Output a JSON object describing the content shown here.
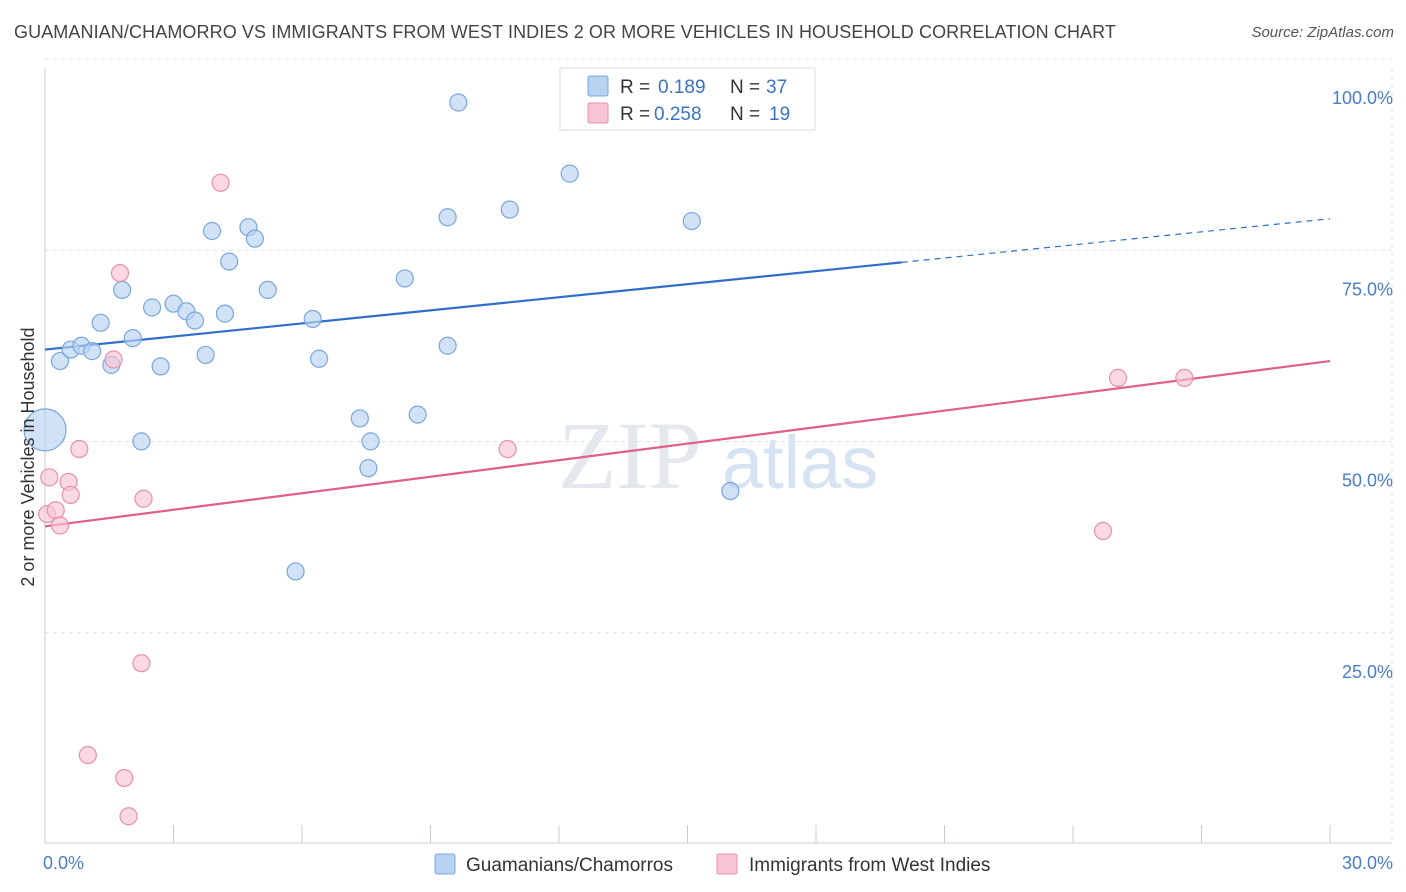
{
  "title": "GUAMANIAN/CHAMORRO VS IMMIGRANTS FROM WEST INDIES 2 OR MORE VEHICLES IN HOUSEHOLD CORRELATION CHART",
  "source": "Source: ZipAtlas.com",
  "watermark": {
    "zip": "ZIP",
    "atlas": "atlas"
  },
  "colors": {
    "blue_fill": "#b8d3f2",
    "blue_stroke": "#7aa6dc",
    "blue_line": "#2f6fcb",
    "pink_fill": "#f7c4d3",
    "pink_stroke": "#e890ab",
    "pink_line": "#e0608a",
    "grid": "#dde3ea",
    "axis_label": "#4a7cc7"
  },
  "legend": {
    "rows": [
      {
        "r_label": "R =",
        "r_value": "0.189",
        "n_label": "N =",
        "n_value": "37",
        "swatch": "blue"
      },
      {
        "r_label": "R =",
        "r_value": "0.258",
        "n_label": "N =",
        "n_value": "19",
        "swatch": "pink"
      }
    ]
  },
  "bottom_legend": [
    {
      "label": "Guamanians/Chamorros",
      "swatch": "blue"
    },
    {
      "label": "Immigrants from West Indies",
      "swatch": "pink"
    }
  ],
  "chart_data": {
    "type": "scatter",
    "title": "GUAMANIAN/CHAMORRO VS IMMIGRANTS FROM WEST INDIES 2 OR MORE VEHICLES IN HOUSEHOLD CORRELATION CHART",
    "xlabel": "",
    "ylabel": "2 or more Vehicles in Household",
    "xlim": [
      0,
      30
    ],
    "ylim": [
      0,
      100
    ],
    "x_tick_labels": [
      {
        "value": 0,
        "label": "0.0%"
      },
      {
        "value": 30,
        "label": "30.0%"
      }
    ],
    "y_tick_labels": [
      {
        "value": 100,
        "label": "100.0%"
      },
      {
        "value": 75,
        "label": "75.0%"
      },
      {
        "value": 50,
        "label": "50.0%"
      },
      {
        "value": 25,
        "label": "25.0%"
      }
    ],
    "grid": true,
    "legend_position": "top-center",
    "series": [
      {
        "name": "Guamanians/Chamorros",
        "color": "blue",
        "x": [
          0.0,
          0.35,
          0.6,
          0.85,
          1.1,
          1.3,
          1.55,
          1.8,
          2.05,
          2.25,
          2.5,
          2.7,
          3.0,
          3.3,
          3.5,
          3.75,
          3.9,
          4.2,
          4.3,
          4.75,
          4.9,
          5.2,
          5.85,
          6.25,
          6.4,
          7.35,
          7.55,
          7.6,
          8.4,
          8.7,
          9.4,
          9.4,
          9.65,
          10.85,
          12.25,
          15.1,
          16.0
        ],
        "y": [
          54.0,
          63.0,
          64.5,
          65.0,
          64.3,
          68.0,
          62.5,
          72.3,
          66.0,
          52.5,
          70.0,
          62.3,
          70.5,
          69.5,
          68.3,
          63.8,
          80.0,
          69.2,
          76.0,
          80.5,
          79.0,
          72.3,
          35.5,
          68.5,
          63.3,
          55.5,
          49.0,
          52.5,
          73.8,
          56.0,
          81.8,
          65.0,
          96.8,
          82.8,
          87.5,
          81.3,
          46.0
        ]
      },
      {
        "name": "Immigrants from West Indies",
        "color": "pink",
        "x": [
          0.05,
          0.1,
          0.25,
          0.35,
          0.55,
          0.6,
          0.8,
          1.0,
          1.6,
          1.75,
          1.85,
          1.95,
          2.25,
          2.3,
          4.1,
          10.8,
          24.7,
          25.05,
          26.6
        ],
        "y": [
          43.0,
          47.8,
          43.5,
          41.5,
          47.2,
          45.5,
          51.5,
          11.5,
          63.2,
          74.5,
          8.5,
          3.5,
          23.5,
          45.0,
          86.3,
          51.5,
          40.8,
          60.8,
          60.8
        ]
      }
    ],
    "trend_lines": [
      {
        "series": "Guamanians/Chamorros",
        "x_start": 0.0,
        "y_start": 64.5,
        "x_solid_end": 20.0,
        "y_solid_end": 75.9,
        "x_end": 30.0,
        "y_end": 81.6
      },
      {
        "series": "Immigrants from West Indies",
        "x_start": 0.0,
        "y_start": 41.4,
        "x_end": 30.0,
        "y_end": 63.0
      }
    ]
  }
}
